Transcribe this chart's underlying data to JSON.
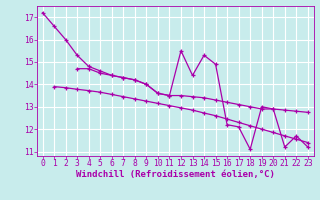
{
  "line1_x": [
    0,
    1,
    2,
    3,
    4,
    5,
    6,
    7,
    8,
    9,
    10,
    11,
    12,
    13,
    14,
    15,
    16,
    17,
    18,
    19,
    20,
    21,
    22,
    23
  ],
  "line1_y": [
    17.2,
    16.6,
    16.0,
    15.3,
    14.8,
    14.6,
    14.4,
    14.3,
    14.2,
    14.0,
    13.6,
    13.5,
    15.5,
    14.4,
    15.3,
    14.9,
    12.2,
    12.1,
    11.1,
    13.0,
    12.9,
    11.2,
    11.7,
    11.2
  ],
  "line2_x": [
    3,
    4,
    5,
    6,
    7,
    8,
    9,
    10,
    11,
    12,
    13,
    14,
    15,
    16,
    17,
    18,
    19,
    20,
    21,
    22,
    23
  ],
  "line2_y": [
    14.7,
    14.7,
    14.5,
    14.4,
    14.3,
    14.2,
    14.0,
    13.6,
    13.5,
    13.5,
    13.45,
    13.4,
    13.3,
    13.2,
    13.1,
    13.0,
    12.9,
    12.9,
    12.85,
    12.8,
    12.75
  ],
  "line3_x": [
    1,
    2,
    3,
    4,
    5,
    6,
    7,
    8,
    9,
    10,
    11,
    12,
    13,
    14,
    15,
    16,
    17,
    18,
    19,
    20,
    21,
    22,
    23
  ],
  "line3_y": [
    13.9,
    13.85,
    13.78,
    13.72,
    13.65,
    13.55,
    13.45,
    13.35,
    13.25,
    13.15,
    13.05,
    12.95,
    12.85,
    12.72,
    12.6,
    12.45,
    12.3,
    12.15,
    12.0,
    11.85,
    11.7,
    11.55,
    11.4
  ],
  "line_color": "#aa00aa",
  "bg_color": "#c8ecec",
  "grid_color": "#ffffff",
  "xlabel": "Windchill (Refroidissement éolien,°C)",
  "xlabel_fontsize": 6.5,
  "tick_fontsize": 5.8,
  "xlim": [
    -0.5,
    23.5
  ],
  "ylim": [
    10.8,
    17.5
  ],
  "yticks": [
    11,
    12,
    13,
    14,
    15,
    16,
    17
  ],
  "xticks": [
    0,
    1,
    2,
    3,
    4,
    5,
    6,
    7,
    8,
    9,
    10,
    11,
    12,
    13,
    14,
    15,
    16,
    17,
    18,
    19,
    20,
    21,
    22,
    23
  ]
}
